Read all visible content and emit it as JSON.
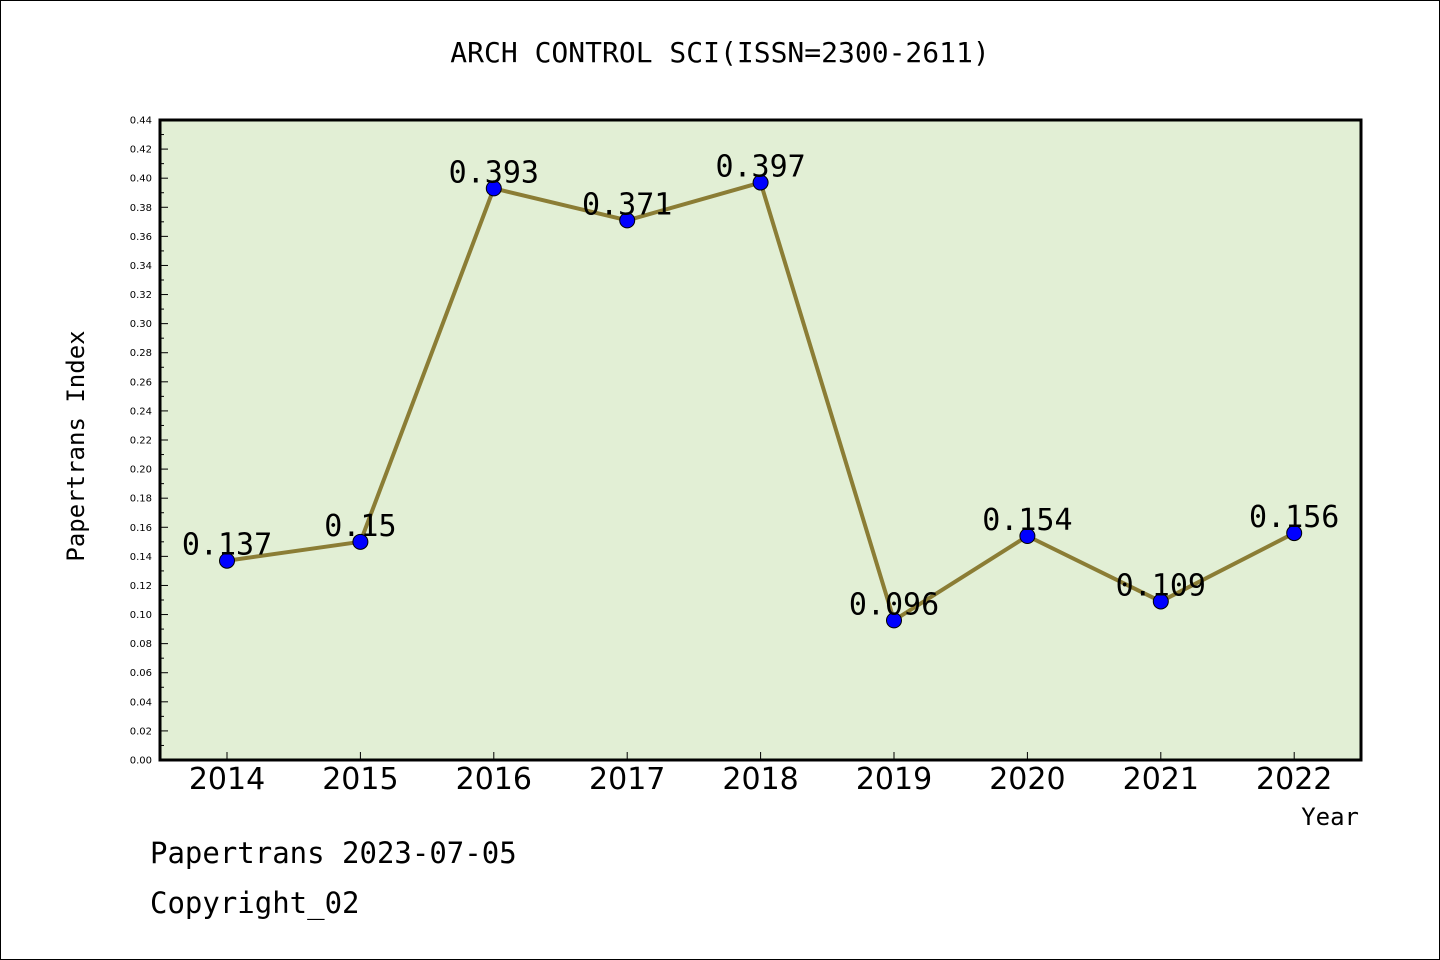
{
  "footer": {
    "line1": "Papertrans 2023-07-05",
    "line2": "Copyright_02"
  },
  "chart_data": {
    "type": "line",
    "title": "ARCH CONTROL SCI(ISSN=2300-2611)",
    "xlabel": "Year",
    "ylabel": "Papertrans Index",
    "categories": [
      "2014",
      "2015",
      "2016",
      "2017",
      "2018",
      "2019",
      "2020",
      "2021",
      "2022"
    ],
    "series": [
      {
        "values": [
          0.137,
          0.15,
          0.393,
          0.371,
          0.397,
          0.096,
          0.154,
          0.109,
          0.156
        ],
        "data_labels": [
          "0.137",
          "0.15",
          "0.393",
          "0.371",
          "0.397",
          "0.096",
          "0.154",
          "0.109",
          "0.156"
        ],
        "line_color": "#8b7d35",
        "marker_color": "#0000ff"
      }
    ],
    "ylim": [
      0,
      0.44
    ],
    "y_ticks": [
      "0.00",
      "0.02",
      "0.04",
      "0.06",
      "0.08",
      "0.10",
      "0.12",
      "0.14",
      "0.16",
      "0.18",
      "0.20",
      "0.22",
      "0.24",
      "0.26",
      "0.28",
      "0.30",
      "0.32",
      "0.34",
      "0.36",
      "0.38",
      "0.40",
      "0.42",
      "0.44"
    ],
    "plot_background": "#e2efd5",
    "grid": false,
    "legend": "none"
  }
}
